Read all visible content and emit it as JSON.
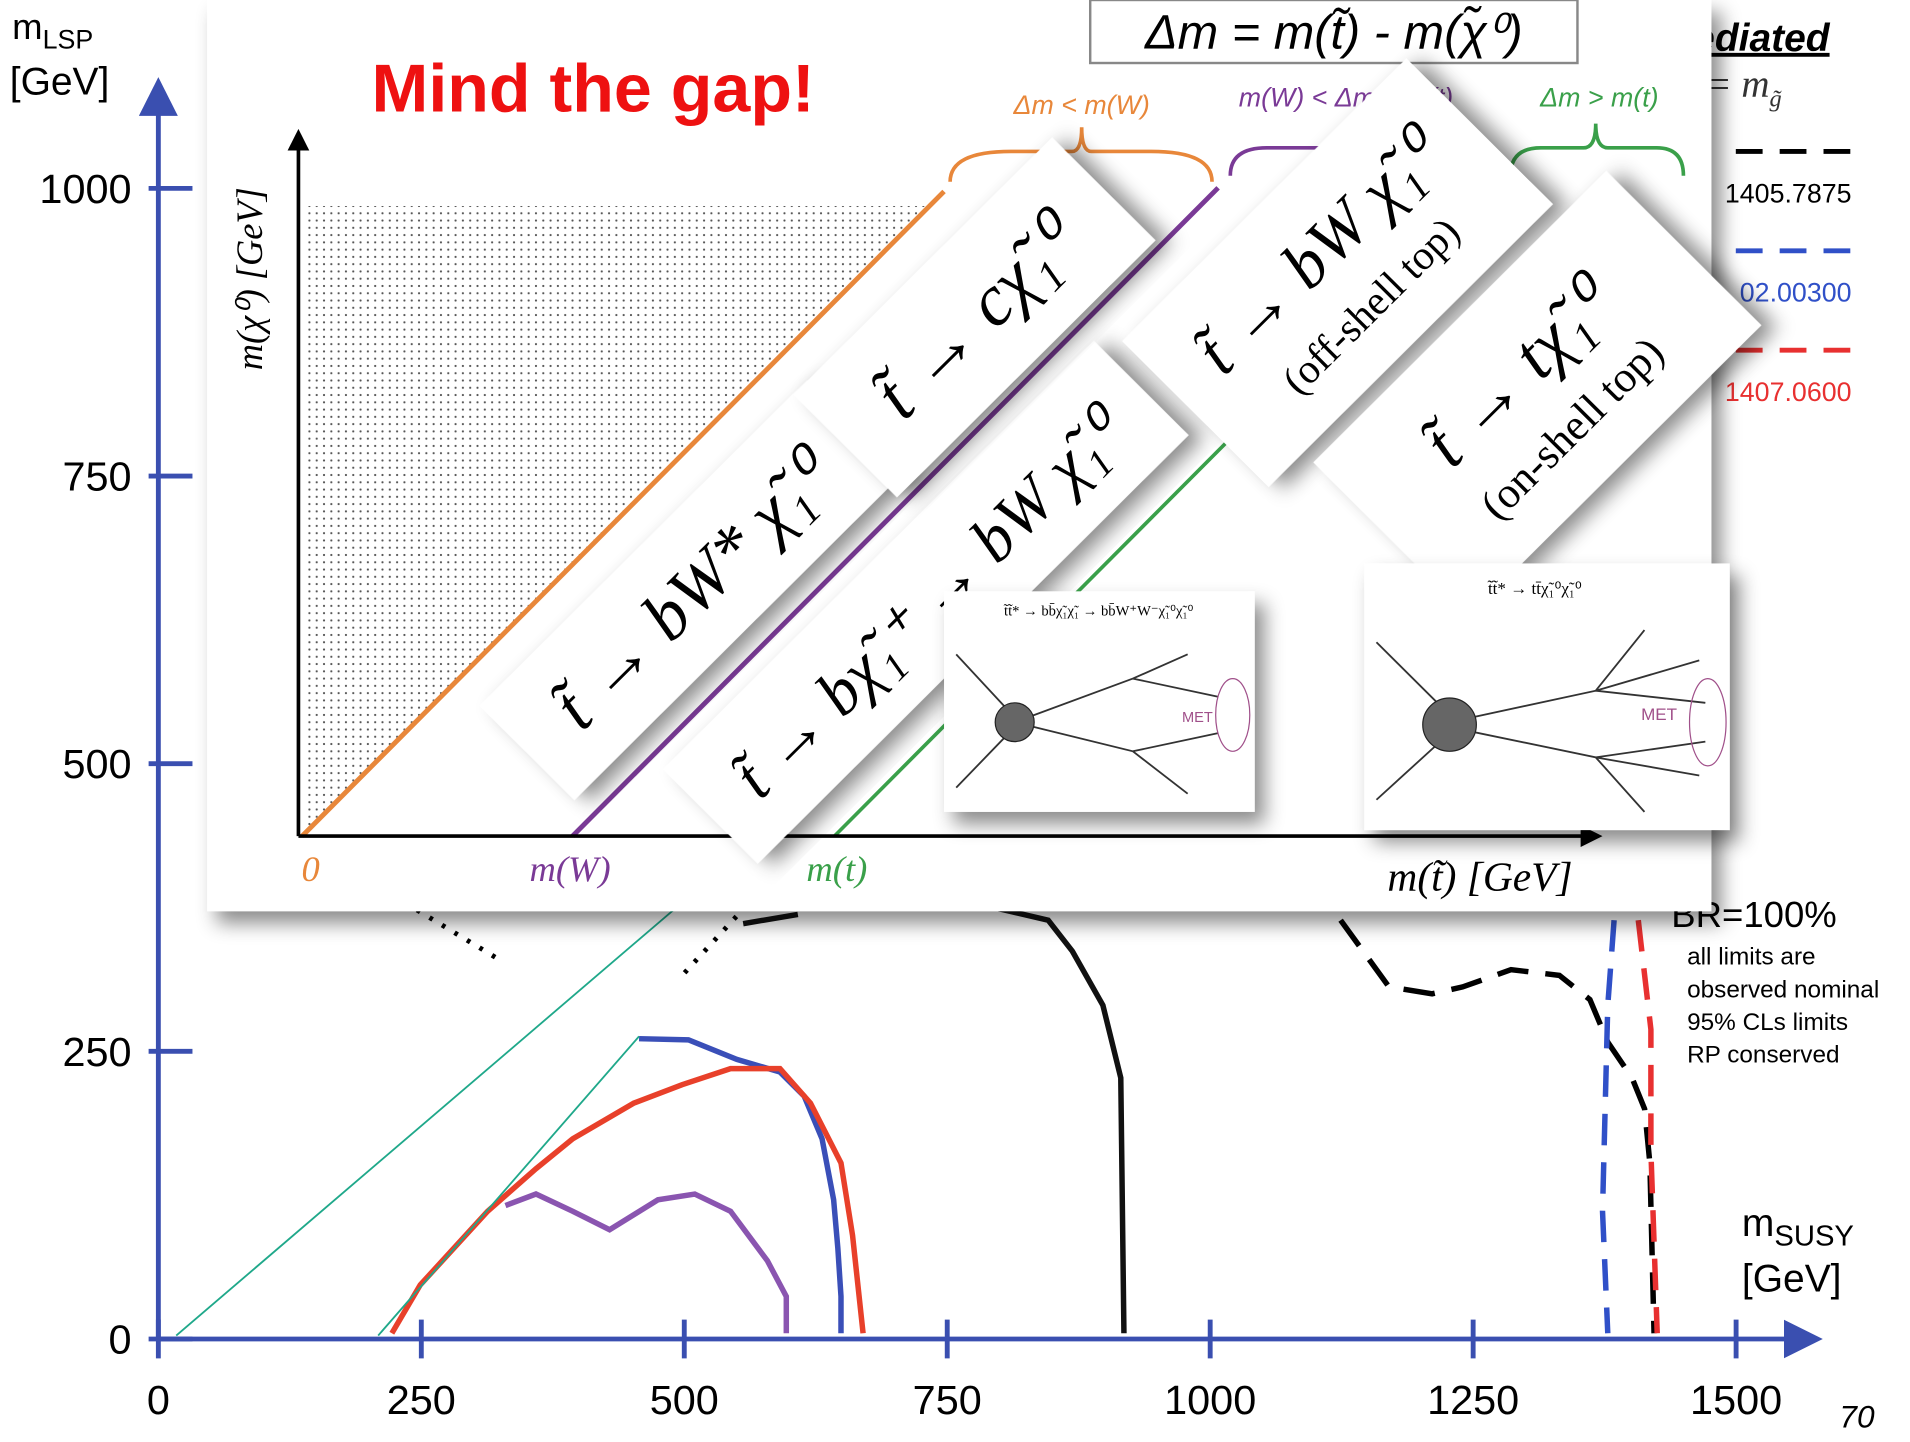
{
  "chart_data": {
    "type": "line",
    "xlabel": {
      "main": "m",
      "sub": "SUSY",
      "unit": "[GeV]"
    },
    "ylabel": {
      "main": "m",
      "sub": "LSP",
      "unit": "[GeV]"
    },
    "xlim": [
      0,
      1575
    ],
    "ylim": [
      0,
      1090
    ],
    "xticks": [
      0,
      250,
      500,
      750,
      1000,
      1250,
      1500
    ],
    "yticks": [
      0,
      250,
      500,
      750,
      1000
    ],
    "axis_color": "#3a4fb0",
    "series": [
      {
        "color": "#111111",
        "dash": false,
        "x": [
          556,
          608,
          null,
          799,
          846,
          869,
          898,
          915,
          918
        ],
        "values": [
          361,
          369,
          null,
          374,
          364,
          337,
          290,
          227,
          5
        ]
      },
      {
        "color": "#3a4fb8",
        "dash": false,
        "x": [
          457,
          504,
          550,
          591,
          614,
          631,
          642,
          646,
          649,
          649
        ],
        "values": [
          261,
          260,
          243,
          232,
          211,
          174,
          121,
          79,
          37,
          5
        ]
      },
      {
        "color": "#e8402a",
        "dash": false,
        "x": [
          222,
          249,
          313,
          359,
          394,
          452,
          498,
          544,
          591,
          620,
          649,
          660,
          670
        ],
        "values": [
          5,
          47,
          111,
          148,
          174,
          205,
          221,
          235,
          235,
          205,
          153,
          90,
          5
        ]
      },
      {
        "color": "#8a55b0",
        "dash": false,
        "x": [
          330,
          359,
          394,
          429,
          475,
          510,
          544,
          579,
          597,
          597
        ],
        "values": [
          116,
          126,
          111,
          95,
          121,
          126,
          111,
          68,
          37,
          5
        ]
      },
      {
        "color": "#1fa88a",
        "dash": false,
        "x": [
          17,
          559
        ],
        "values": [
          3,
          427
        ]
      },
      {
        "color": "#1fa88a",
        "dash": false,
        "x": [
          209,
          457
        ],
        "values": [
          3,
          263
        ]
      },
      {
        "name": "1405.7875",
        "color": "#000000",
        "dash": true,
        "x": [
          1124,
          1170,
          1211,
          1240,
          1286,
          1332,
          1361,
          1378,
          1401,
          1413,
          1418,
          1422
        ],
        "values": [
          364,
          306,
          300,
          306,
          321,
          316,
          295,
          258,
          227,
          200,
          153,
          5
        ]
      },
      {
        "name": "02.00300",
        "color": "#3050c8",
        "dash": true,
        "x": [
          1384,
          1378,
          1373,
          1378
        ],
        "values": [
          364,
          290,
          111,
          5
        ]
      },
      {
        "name": "1407.0600",
        "color": "#e83030",
        "dash": true,
        "x": [
          1407,
          1419,
          1419,
          1425
        ],
        "values": [
          364,
          269,
          163,
          5
        ]
      }
    ],
    "annotations": {
      "header": "ediated",
      "header2": {
        "main": "= m",
        "sub": "g̃"
      },
      "br": "BR=100%",
      "notes": [
        "all limits are",
        "observed nominal",
        "95% CLs limits",
        "RP conserved"
      ]
    },
    "page_number": "70",
    "inset": {
      "title": "Mind the gap!",
      "formula": "Δm = m(t̃) - m(χ̃⁰)",
      "regions": [
        {
          "label": "Δm < m(W)",
          "color": "#e8873a"
        },
        {
          "label": "m(W) < Δm < m(t)",
          "color": "#7a3a96"
        },
        {
          "label": "Δm > m(t)",
          "color": "#3aa04a"
        }
      ],
      "ylabel": "m(χ⁰) [GeV]",
      "xlabel": "m(t̃) [GeV]",
      "markers": [
        "0",
        "m(W)",
        "m(t)"
      ],
      "decays": [
        {
          "text": "t̃ → cχ̃₁⁰"
        },
        {
          "text": "t̃ → bW* χ̃₁⁰"
        },
        {
          "text": "t̃ → bχ̃₁⁺ → bW χ̃₁⁰"
        },
        {
          "text": "t̃ → bW χ̃₁⁰",
          "note": "(off-shell top)"
        },
        {
          "text": "t̃ → tχ̃₁⁰",
          "note": "(on-shell top)"
        }
      ],
      "diagrams": [
        {
          "caption": "t̃t̃* → bb̄χ̃₁χ̃₁ → bb̄W⁺W⁻χ̃₁⁰χ̃₁⁰",
          "met": "MET"
        },
        {
          "caption": "t̃t̃* → tt̄χ̃₁⁰χ̃₁⁰",
          "met": "MET"
        }
      ]
    }
  }
}
